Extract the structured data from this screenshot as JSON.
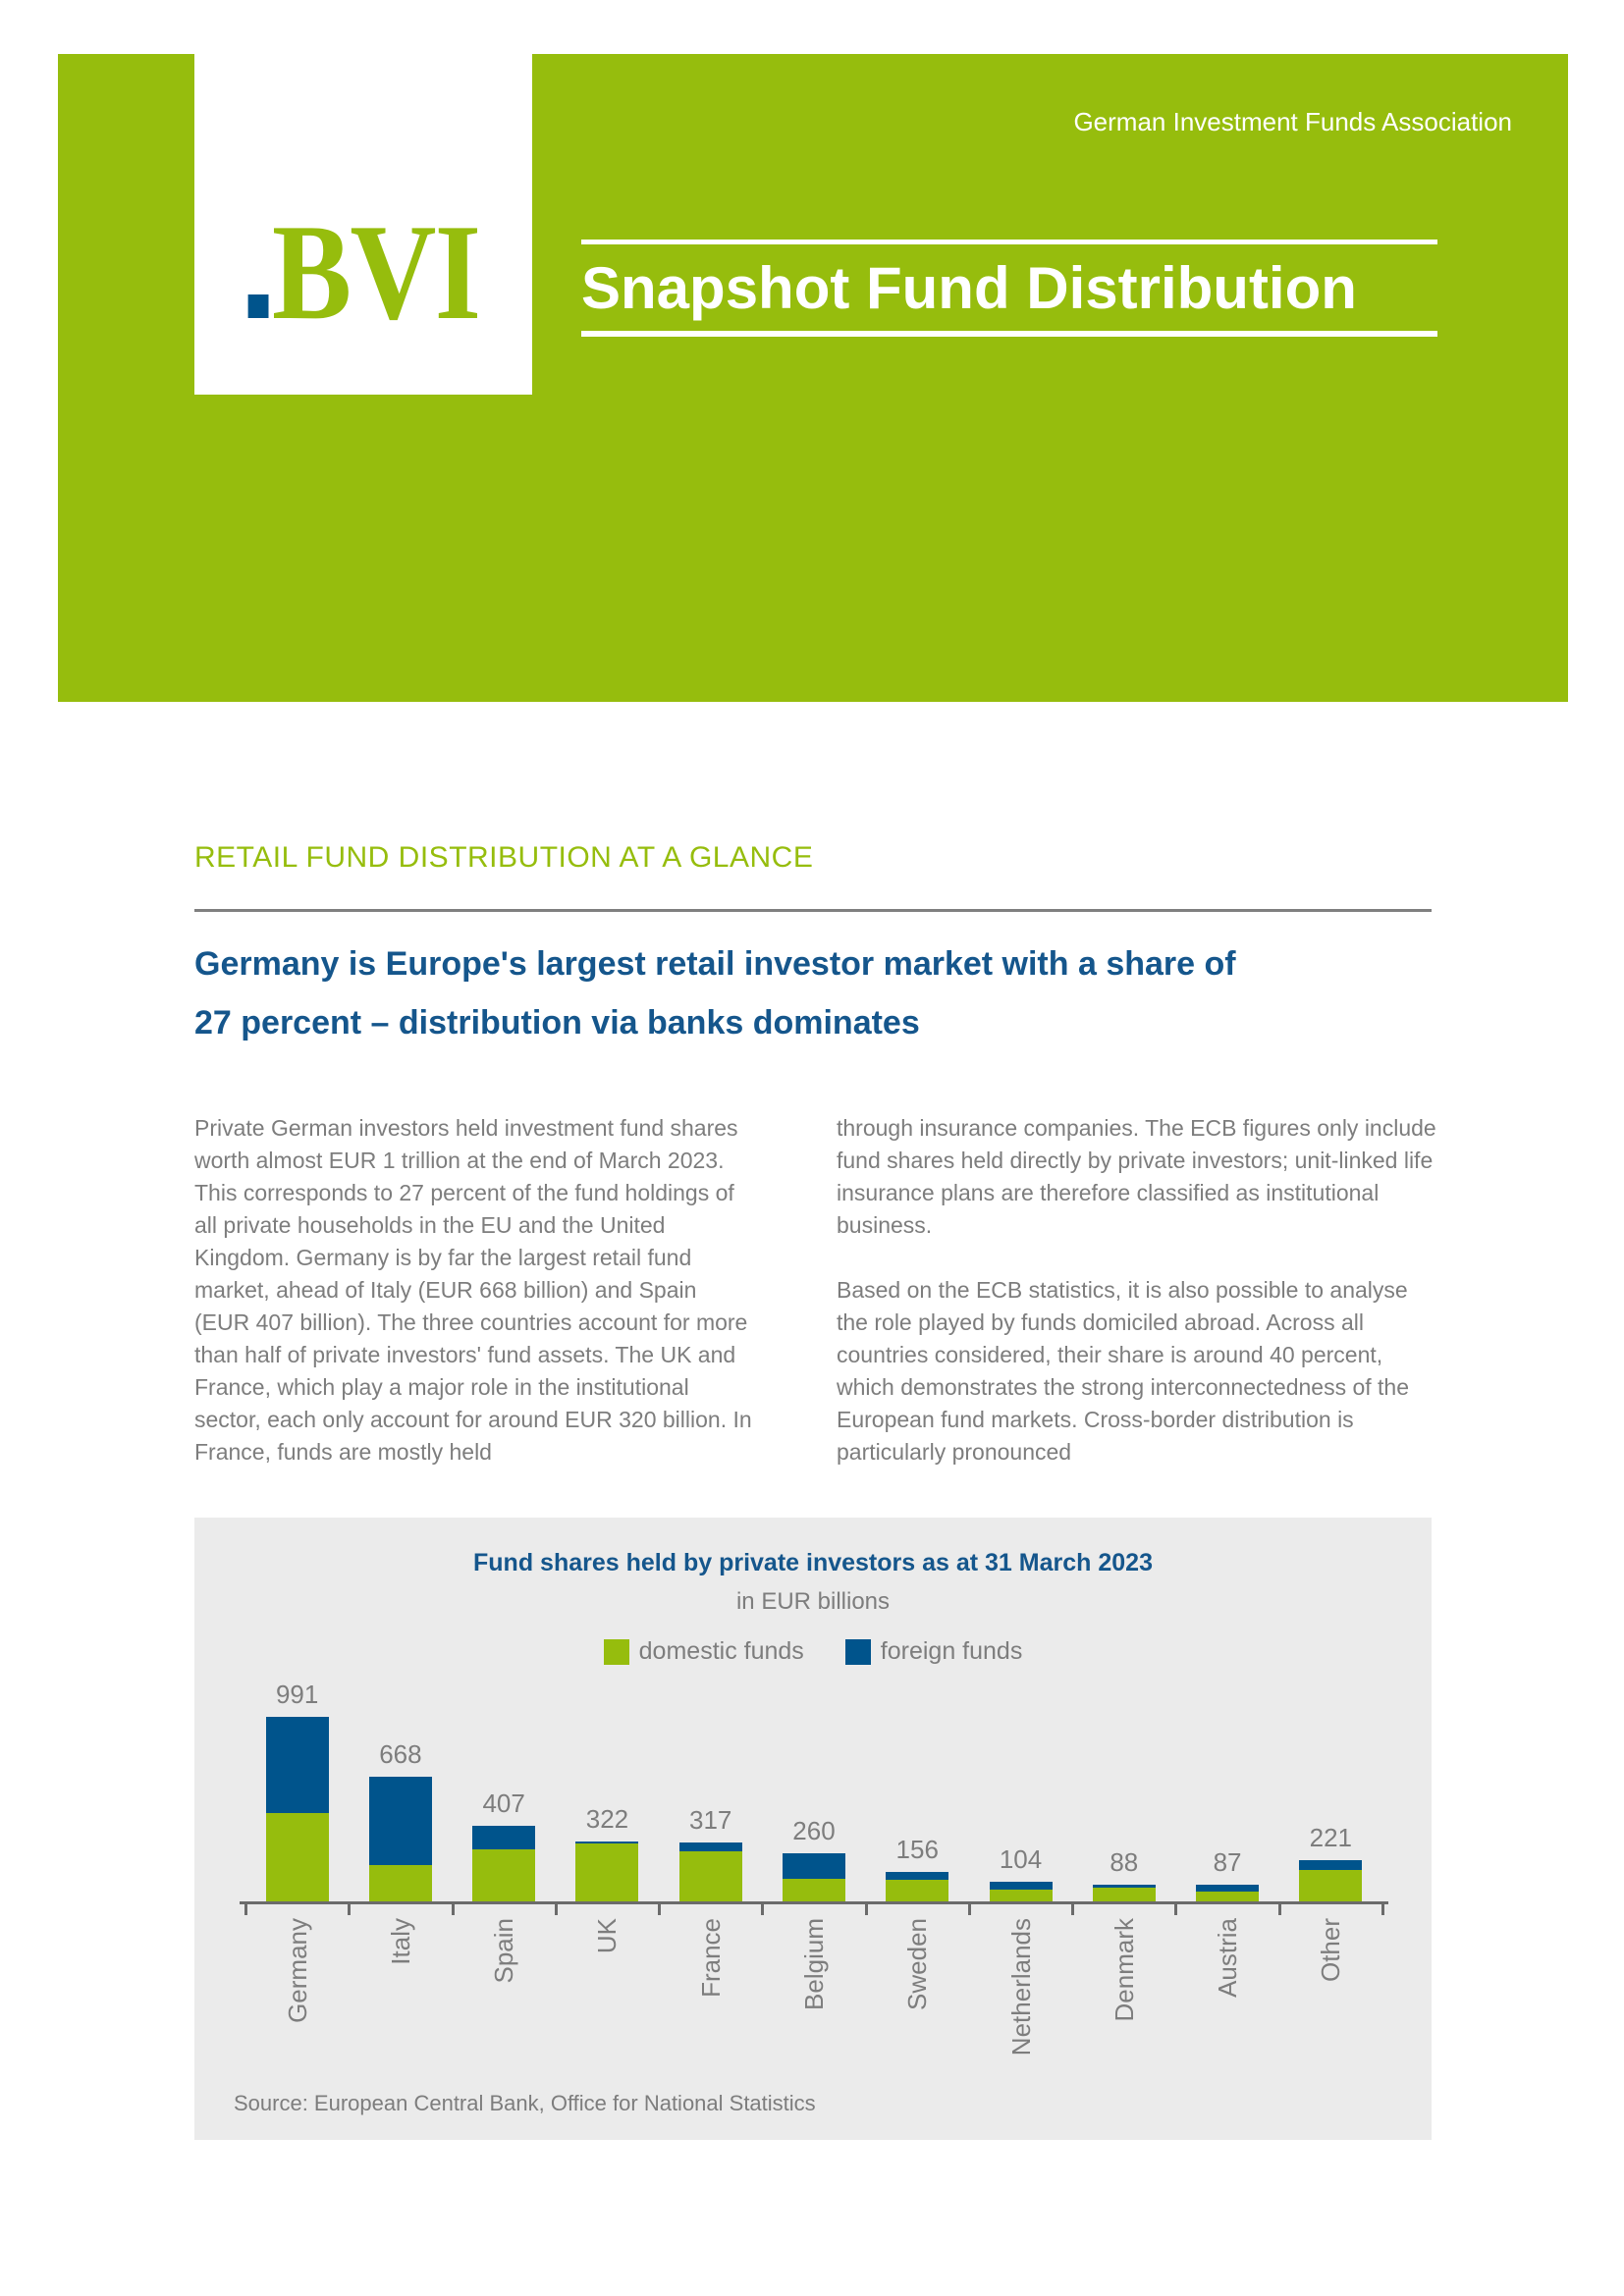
{
  "header": {
    "association": "German Investment Funds Association",
    "logo_text": "BVI",
    "title": "Snapshot Fund Distribution"
  },
  "section": {
    "kicker": "RETAIL FUND DISTRIBUTION AT A GLANCE",
    "title_line1": "Germany is Europe's largest retail investor market with a share of",
    "title_line2": "27 percent – distribution via banks dominates"
  },
  "body": {
    "left_paragraphs": [
      "Private German investors held investment fund shares worth almost EUR 1 trillion at the end of March 2023. This corresponds to 27 percent of the fund holdings of all private households in the EU and the United Kingdom. Germany is by far the largest retail fund market, ahead of Italy (EUR 668 billion) and Spain (EUR 407 billion). The three countries account for more than half of private investors' fund assets. The UK and France, which play a major role in the institutional sector, each only account for around EUR 320 billion. In France, funds are mostly held"
    ],
    "right_paragraphs": [
      "through insurance companies. The ECB figures only include fund shares held directly by private investors; unit-linked life insurance plans are therefore classified as institutional business.",
      "Based on the ECB statistics, it is also possible to analyse the role played by funds domiciled abroad. Across all countries considered, their share is around 40 percent, which demonstrates the strong interconnectedness of the European fund markets. Cross-border distribution is particularly pronounced"
    ]
  },
  "chart": {
    "title": "Fund shares held by private investors as at 31 March 2023",
    "subtitle": "in EUR billions",
    "source": "Source: European Central Bank, Office for National Statistics"
  },
  "chart_data": {
    "type": "bar",
    "stacked": true,
    "title": "Fund shares held by private investors as at 31 March 2023",
    "subtitle": "in EUR billions",
    "categories": [
      "Germany",
      "Italy",
      "Spain",
      "UK",
      "France",
      "Belgium",
      "Sweden",
      "Netherlands",
      "Denmark",
      "Austria",
      "Other"
    ],
    "series": [
      {
        "name": "domestic funds",
        "color": "#96bd0d",
        "values": [
          475,
          194,
          277,
          313,
          268,
          120,
          117,
          62,
          74,
          52,
          170
        ]
      },
      {
        "name": "foreign funds",
        "color": "#00548c",
        "values": [
          516,
          474,
          130,
          9,
          49,
          140,
          39,
          42,
          14,
          35,
          51
        ]
      }
    ],
    "totals": [
      991,
      668,
      407,
      322,
      317,
      260,
      156,
      104,
      88,
      87,
      221
    ],
    "value_labels_shown": true,
    "legend_position": "top",
    "grid": false,
    "ylim": [
      0,
      1050
    ],
    "source": "Source: European Central Bank, Office for National Statistics"
  },
  "colors": {
    "brand_green": "#96bd0d",
    "brand_blue": "#00548c",
    "heading_blue": "#15568c",
    "text_gray": "#7d7d7d",
    "chart_bg": "#ebebeb",
    "axis_gray": "#6b6b6b"
  }
}
